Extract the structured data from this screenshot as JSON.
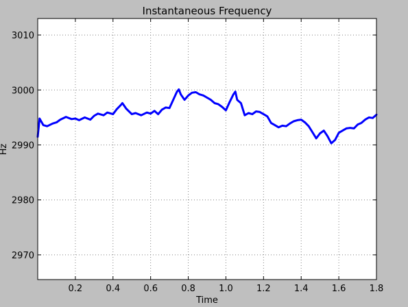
{
  "chart_data": {
    "type": "line",
    "title": "Instantaneous Frequency",
    "xlabel": "Time",
    "ylabel": "Hz",
    "xlim": [
      0.0,
      1.8
    ],
    "ylim": [
      2965.5,
      3013.0
    ],
    "xticks": [
      0.2,
      0.4,
      0.6,
      0.8,
      1.0,
      1.2,
      1.4,
      1.6,
      1.8
    ],
    "xtick_labels": [
      "0.2",
      "0.4",
      "0.6",
      "0.8",
      "1.0",
      "1.2",
      "1.4",
      "1.6",
      "1.8"
    ],
    "yticks": [
      2970,
      2980,
      2990,
      3000,
      3010
    ],
    "ytick_labels": [
      "2970",
      "2980",
      "2990",
      "3000",
      "3010"
    ],
    "grid": true,
    "series": [
      {
        "color": "#0000ff",
        "x": [
          0.0,
          0.01,
          0.03,
          0.05,
          0.08,
          0.1,
          0.12,
          0.15,
          0.18,
          0.2,
          0.22,
          0.25,
          0.28,
          0.3,
          0.32,
          0.35,
          0.37,
          0.4,
          0.42,
          0.44,
          0.45,
          0.47,
          0.5,
          0.52,
          0.55,
          0.58,
          0.6,
          0.62,
          0.64,
          0.66,
          0.68,
          0.7,
          0.72,
          0.74,
          0.75,
          0.76,
          0.78,
          0.8,
          0.82,
          0.84,
          0.86,
          0.88,
          0.9,
          0.92,
          0.94,
          0.96,
          0.98,
          1.0,
          1.02,
          1.04,
          1.05,
          1.06,
          1.08,
          1.1,
          1.12,
          1.14,
          1.16,
          1.18,
          1.2,
          1.22,
          1.24,
          1.26,
          1.28,
          1.3,
          1.32,
          1.34,
          1.36,
          1.38,
          1.4,
          1.42,
          1.44,
          1.46,
          1.48,
          1.5,
          1.52,
          1.54,
          1.56,
          1.58,
          1.6,
          1.62,
          1.64,
          1.66,
          1.68,
          1.7,
          1.72,
          1.74,
          1.76,
          1.78,
          1.8
        ],
        "y": [
          2991.5,
          2994.8,
          2993.6,
          2993.4,
          2993.9,
          2994.1,
          2994.6,
          2995.1,
          2994.7,
          2994.8,
          2994.5,
          2995.0,
          2994.6,
          2995.3,
          2995.7,
          2995.4,
          2995.9,
          2995.6,
          2996.5,
          2997.2,
          2997.6,
          2996.6,
          2995.6,
          2995.8,
          2995.4,
          2995.9,
          2995.7,
          2996.2,
          2995.6,
          2996.4,
          2996.8,
          2996.7,
          2998.2,
          2999.7,
          3000.1,
          2999.2,
          2998.2,
          2999.0,
          2999.5,
          2999.6,
          2999.2,
          2999.0,
          2998.6,
          2998.2,
          2997.6,
          2997.4,
          2996.9,
          2996.3,
          2997.8,
          2999.2,
          2999.7,
          2998.2,
          2997.6,
          2995.4,
          2995.8,
          2995.6,
          2996.1,
          2996.0,
          2995.6,
          2995.2,
          2994.0,
          2993.6,
          2993.2,
          2993.5,
          2993.4,
          2993.9,
          2994.3,
          2994.5,
          2994.6,
          2994.1,
          2993.4,
          2992.3,
          2991.2,
          2992.1,
          2992.6,
          2991.6,
          2990.3,
          2990.9,
          2992.2,
          2992.6,
          2993.0,
          2993.1,
          2993.0,
          2993.7,
          2994.0,
          2994.6,
          2995.0,
          2994.9,
          2995.5
        ]
      }
    ]
  }
}
